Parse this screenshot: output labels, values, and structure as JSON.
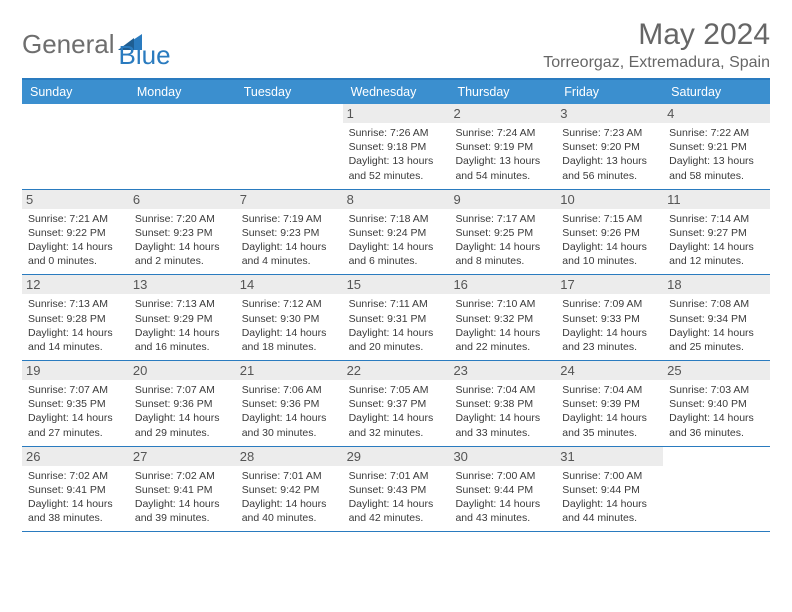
{
  "logo": {
    "word1": "General",
    "word2": "Blue"
  },
  "title": "May 2024",
  "location": "Torreorgaz, Extremadura, Spain",
  "colors": {
    "header_bg": "#3b8fcf",
    "border": "#2a7bbf",
    "daynum_bg": "#ececec",
    "text": "#3a3a3a",
    "title_text": "#666666"
  },
  "typography": {
    "title_fontsize": 30,
    "location_fontsize": 16,
    "weekday_fontsize": 12.5,
    "daynum_fontsize": 13,
    "body_fontsize": 10.5
  },
  "weekdays": [
    "Sunday",
    "Monday",
    "Tuesday",
    "Wednesday",
    "Thursday",
    "Friday",
    "Saturday"
  ],
  "weeks": [
    [
      null,
      null,
      null,
      {
        "n": "1",
        "sr": "7:26 AM",
        "ss": "9:18 PM",
        "dl": "13 hours and 52 minutes."
      },
      {
        "n": "2",
        "sr": "7:24 AM",
        "ss": "9:19 PM",
        "dl": "13 hours and 54 minutes."
      },
      {
        "n": "3",
        "sr": "7:23 AM",
        "ss": "9:20 PM",
        "dl": "13 hours and 56 minutes."
      },
      {
        "n": "4",
        "sr": "7:22 AM",
        "ss": "9:21 PM",
        "dl": "13 hours and 58 minutes."
      }
    ],
    [
      {
        "n": "5",
        "sr": "7:21 AM",
        "ss": "9:22 PM",
        "dl": "14 hours and 0 minutes."
      },
      {
        "n": "6",
        "sr": "7:20 AM",
        "ss": "9:23 PM",
        "dl": "14 hours and 2 minutes."
      },
      {
        "n": "7",
        "sr": "7:19 AM",
        "ss": "9:23 PM",
        "dl": "14 hours and 4 minutes."
      },
      {
        "n": "8",
        "sr": "7:18 AM",
        "ss": "9:24 PM",
        "dl": "14 hours and 6 minutes."
      },
      {
        "n": "9",
        "sr": "7:17 AM",
        "ss": "9:25 PM",
        "dl": "14 hours and 8 minutes."
      },
      {
        "n": "10",
        "sr": "7:15 AM",
        "ss": "9:26 PM",
        "dl": "14 hours and 10 minutes."
      },
      {
        "n": "11",
        "sr": "7:14 AM",
        "ss": "9:27 PM",
        "dl": "14 hours and 12 minutes."
      }
    ],
    [
      {
        "n": "12",
        "sr": "7:13 AM",
        "ss": "9:28 PM",
        "dl": "14 hours and 14 minutes."
      },
      {
        "n": "13",
        "sr": "7:13 AM",
        "ss": "9:29 PM",
        "dl": "14 hours and 16 minutes."
      },
      {
        "n": "14",
        "sr": "7:12 AM",
        "ss": "9:30 PM",
        "dl": "14 hours and 18 minutes."
      },
      {
        "n": "15",
        "sr": "7:11 AM",
        "ss": "9:31 PM",
        "dl": "14 hours and 20 minutes."
      },
      {
        "n": "16",
        "sr": "7:10 AM",
        "ss": "9:32 PM",
        "dl": "14 hours and 22 minutes."
      },
      {
        "n": "17",
        "sr": "7:09 AM",
        "ss": "9:33 PM",
        "dl": "14 hours and 23 minutes."
      },
      {
        "n": "18",
        "sr": "7:08 AM",
        "ss": "9:34 PM",
        "dl": "14 hours and 25 minutes."
      }
    ],
    [
      {
        "n": "19",
        "sr": "7:07 AM",
        "ss": "9:35 PM",
        "dl": "14 hours and 27 minutes."
      },
      {
        "n": "20",
        "sr": "7:07 AM",
        "ss": "9:36 PM",
        "dl": "14 hours and 29 minutes."
      },
      {
        "n": "21",
        "sr": "7:06 AM",
        "ss": "9:36 PM",
        "dl": "14 hours and 30 minutes."
      },
      {
        "n": "22",
        "sr": "7:05 AM",
        "ss": "9:37 PM",
        "dl": "14 hours and 32 minutes."
      },
      {
        "n": "23",
        "sr": "7:04 AM",
        "ss": "9:38 PM",
        "dl": "14 hours and 33 minutes."
      },
      {
        "n": "24",
        "sr": "7:04 AM",
        "ss": "9:39 PM",
        "dl": "14 hours and 35 minutes."
      },
      {
        "n": "25",
        "sr": "7:03 AM",
        "ss": "9:40 PM",
        "dl": "14 hours and 36 minutes."
      }
    ],
    [
      {
        "n": "26",
        "sr": "7:02 AM",
        "ss": "9:41 PM",
        "dl": "14 hours and 38 minutes."
      },
      {
        "n": "27",
        "sr": "7:02 AM",
        "ss": "9:41 PM",
        "dl": "14 hours and 39 minutes."
      },
      {
        "n": "28",
        "sr": "7:01 AM",
        "ss": "9:42 PM",
        "dl": "14 hours and 40 minutes."
      },
      {
        "n": "29",
        "sr": "7:01 AM",
        "ss": "9:43 PM",
        "dl": "14 hours and 42 minutes."
      },
      {
        "n": "30",
        "sr": "7:00 AM",
        "ss": "9:44 PM",
        "dl": "14 hours and 43 minutes."
      },
      {
        "n": "31",
        "sr": "7:00 AM",
        "ss": "9:44 PM",
        "dl": "14 hours and 44 minutes."
      },
      null
    ]
  ],
  "labels": {
    "sunrise": "Sunrise:",
    "sunset": "Sunset:",
    "daylight": "Daylight:"
  }
}
